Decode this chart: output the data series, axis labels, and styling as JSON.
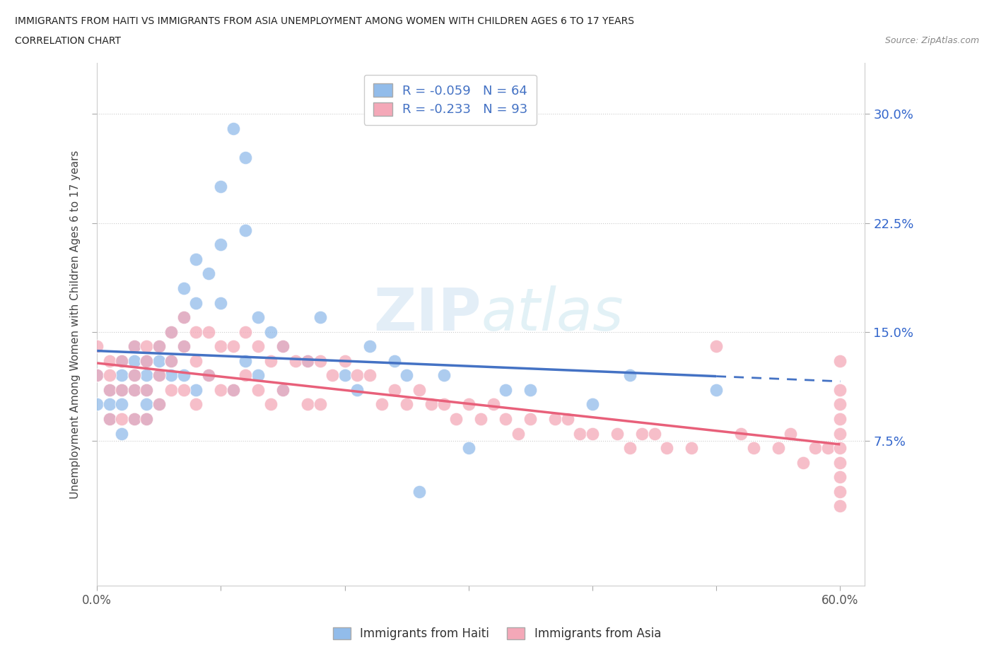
{
  "title_line1": "IMMIGRANTS FROM HAITI VS IMMIGRANTS FROM ASIA UNEMPLOYMENT AMONG WOMEN WITH CHILDREN AGES 6 TO 17 YEARS",
  "title_line2": "CORRELATION CHART",
  "source_text": "Source: ZipAtlas.com",
  "ylabel": "Unemployment Among Women with Children Ages 6 to 17 years",
  "xlim": [
    0.0,
    0.62
  ],
  "ylim": [
    -0.025,
    0.335
  ],
  "yticks_right": [
    0.075,
    0.15,
    0.225,
    0.3
  ],
  "ytick_right_labels": [
    "7.5%",
    "15.0%",
    "22.5%",
    "30.0%"
  ],
  "haiti_color": "#92BCEA",
  "asia_color": "#F4A8B8",
  "haiti_line_color": "#4472C4",
  "asia_line_color": "#E8607A",
  "haiti_R": -0.059,
  "haiti_N": 64,
  "asia_R": -0.233,
  "asia_N": 93,
  "legend_color": "#4472C4",
  "watermark_zip": "ZIP",
  "watermark_atlas": "atlas",
  "haiti_x": [
    0.0,
    0.0,
    0.01,
    0.01,
    0.01,
    0.02,
    0.02,
    0.02,
    0.02,
    0.02,
    0.03,
    0.03,
    0.03,
    0.03,
    0.03,
    0.04,
    0.04,
    0.04,
    0.04,
    0.04,
    0.05,
    0.05,
    0.05,
    0.05,
    0.06,
    0.06,
    0.06,
    0.07,
    0.07,
    0.07,
    0.07,
    0.08,
    0.08,
    0.08,
    0.09,
    0.09,
    0.1,
    0.1,
    0.1,
    0.11,
    0.11,
    0.12,
    0.12,
    0.12,
    0.13,
    0.13,
    0.14,
    0.15,
    0.15,
    0.17,
    0.18,
    0.2,
    0.21,
    0.22,
    0.24,
    0.25,
    0.26,
    0.28,
    0.3,
    0.33,
    0.35,
    0.4,
    0.43,
    0.5
  ],
  "haiti_y": [
    0.12,
    0.1,
    0.11,
    0.1,
    0.09,
    0.13,
    0.12,
    0.11,
    0.1,
    0.08,
    0.14,
    0.13,
    0.12,
    0.11,
    0.09,
    0.13,
    0.12,
    0.11,
    0.1,
    0.09,
    0.14,
    0.13,
    0.12,
    0.1,
    0.15,
    0.13,
    0.12,
    0.18,
    0.16,
    0.14,
    0.12,
    0.2,
    0.17,
    0.11,
    0.19,
    0.12,
    0.25,
    0.21,
    0.17,
    0.29,
    0.11,
    0.27,
    0.22,
    0.13,
    0.16,
    0.12,
    0.15,
    0.14,
    0.11,
    0.13,
    0.16,
    0.12,
    0.11,
    0.14,
    0.13,
    0.12,
    0.04,
    0.12,
    0.07,
    0.11,
    0.11,
    0.1,
    0.12,
    0.11
  ],
  "asia_x": [
    0.0,
    0.0,
    0.01,
    0.01,
    0.01,
    0.01,
    0.02,
    0.02,
    0.02,
    0.03,
    0.03,
    0.03,
    0.03,
    0.04,
    0.04,
    0.04,
    0.04,
    0.05,
    0.05,
    0.05,
    0.06,
    0.06,
    0.06,
    0.07,
    0.07,
    0.07,
    0.08,
    0.08,
    0.08,
    0.09,
    0.09,
    0.1,
    0.1,
    0.11,
    0.11,
    0.12,
    0.12,
    0.13,
    0.13,
    0.14,
    0.14,
    0.15,
    0.15,
    0.16,
    0.17,
    0.17,
    0.18,
    0.18,
    0.19,
    0.2,
    0.21,
    0.22,
    0.23,
    0.24,
    0.25,
    0.26,
    0.27,
    0.28,
    0.29,
    0.3,
    0.31,
    0.32,
    0.33,
    0.34,
    0.35,
    0.37,
    0.38,
    0.39,
    0.4,
    0.42,
    0.43,
    0.44,
    0.45,
    0.46,
    0.48,
    0.5,
    0.52,
    0.53,
    0.55,
    0.56,
    0.57,
    0.58,
    0.59,
    0.6,
    0.6,
    0.6,
    0.6,
    0.6,
    0.6,
    0.6,
    0.6,
    0.6,
    0.6
  ],
  "asia_y": [
    0.14,
    0.12,
    0.13,
    0.12,
    0.11,
    0.09,
    0.13,
    0.11,
    0.09,
    0.14,
    0.12,
    0.11,
    0.09,
    0.14,
    0.13,
    0.11,
    0.09,
    0.14,
    0.12,
    0.1,
    0.15,
    0.13,
    0.11,
    0.16,
    0.14,
    0.11,
    0.15,
    0.13,
    0.1,
    0.15,
    0.12,
    0.14,
    0.11,
    0.14,
    0.11,
    0.15,
    0.12,
    0.14,
    0.11,
    0.13,
    0.1,
    0.14,
    0.11,
    0.13,
    0.13,
    0.1,
    0.13,
    0.1,
    0.12,
    0.13,
    0.12,
    0.12,
    0.1,
    0.11,
    0.1,
    0.11,
    0.1,
    0.1,
    0.09,
    0.1,
    0.09,
    0.1,
    0.09,
    0.08,
    0.09,
    0.09,
    0.09,
    0.08,
    0.08,
    0.08,
    0.07,
    0.08,
    0.08,
    0.07,
    0.07,
    0.14,
    0.08,
    0.07,
    0.07,
    0.08,
    0.06,
    0.07,
    0.07,
    0.13,
    0.11,
    0.1,
    0.09,
    0.08,
    0.07,
    0.06,
    0.05,
    0.04,
    0.03
  ]
}
